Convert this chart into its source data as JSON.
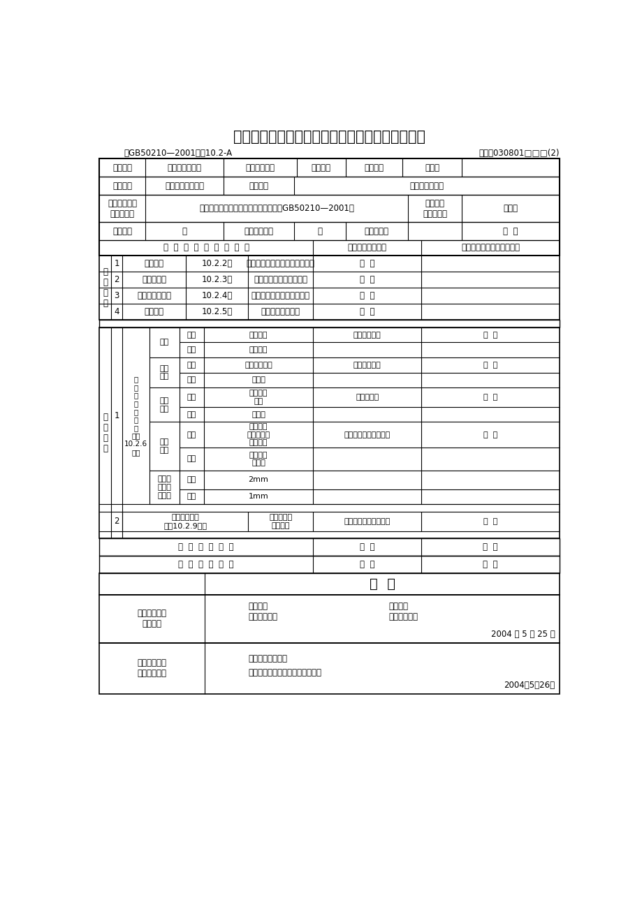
{
  "title": "水性涂料涂饰工程（薄涂料）检验批质量验收记录",
  "subtitle_left": "（GB50210—2001）表10.2-A",
  "subtitle_right": "编号：030801□□□(2)",
  "bg_color": "#ffffff",
  "border_color": "#000000",
  "text_color": "#000000"
}
